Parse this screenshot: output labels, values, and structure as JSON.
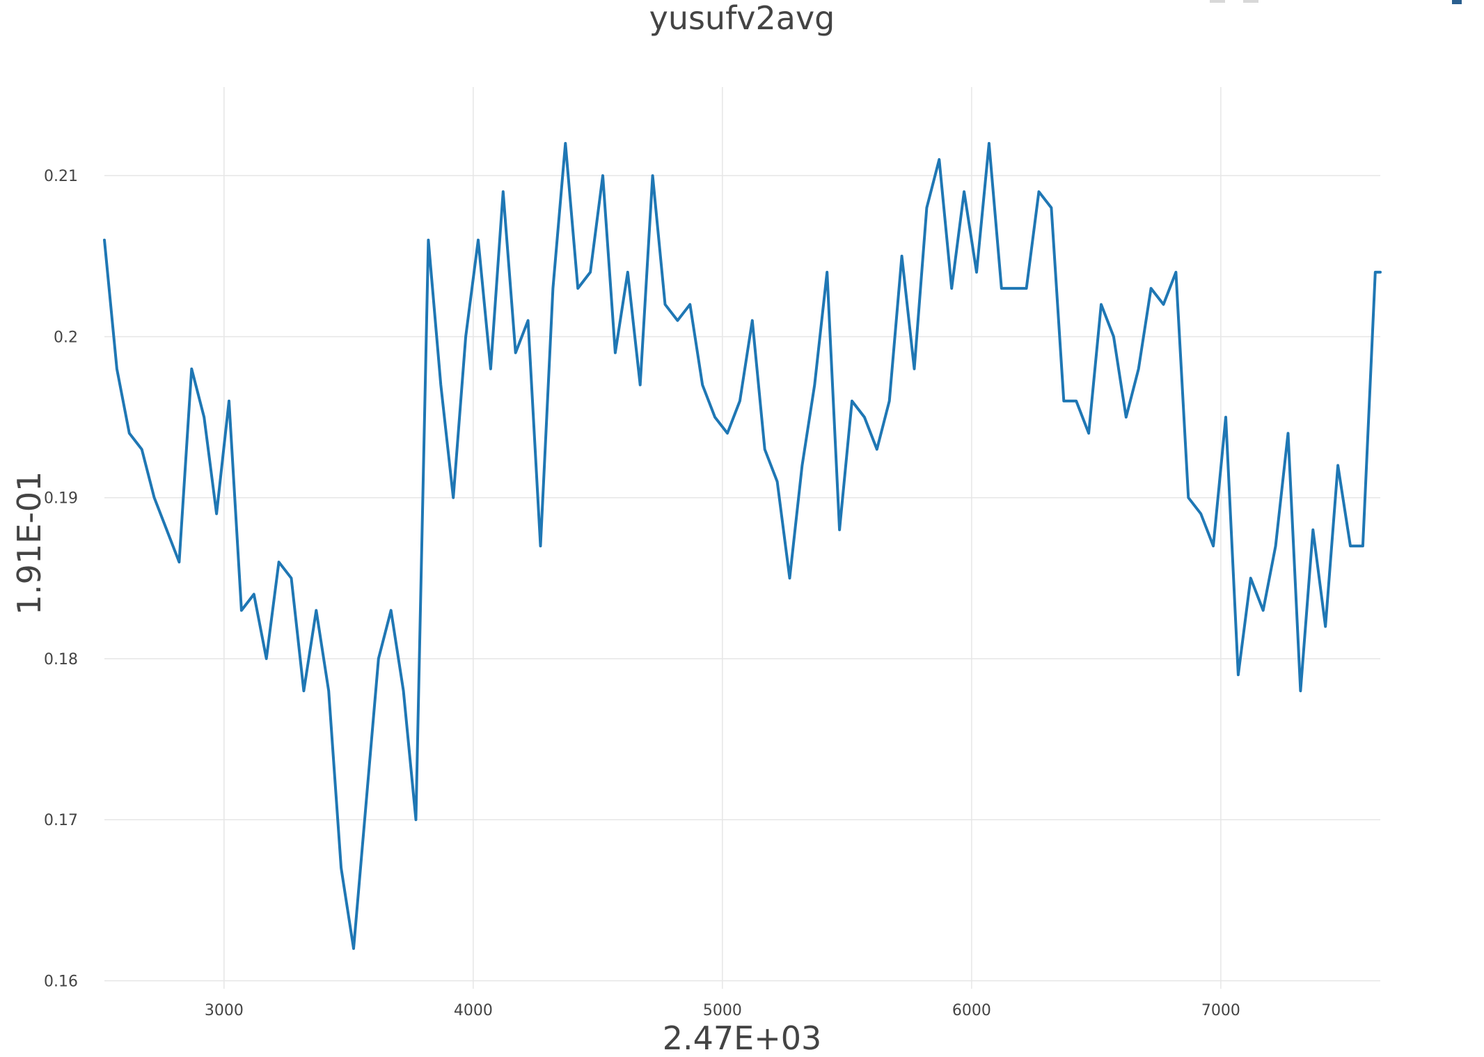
{
  "chart_data": {
    "type": "line",
    "title": "yusufv2avg",
    "xlabel": "2.47E+03",
    "ylabel": "1.91E-01",
    "xlim": [
      2520,
      7640
    ],
    "ylim": [
      0.1595,
      0.2155
    ],
    "x_ticks": [
      3000,
      4000,
      5000,
      6000,
      7000
    ],
    "x_tick_labels": [
      "3000",
      "4000",
      "5000",
      "6000",
      "7000"
    ],
    "y_ticks": [
      0.16,
      0.17,
      0.18,
      0.19,
      0.2,
      0.21
    ],
    "y_tick_labels": [
      "0.16",
      "0.17",
      "0.18",
      "0.19",
      "0.2",
      "0.21"
    ],
    "grid": true,
    "series": [
      {
        "color": "#1f77b4",
        "x": [
          2520,
          2570,
          2620,
          2670,
          2720,
          2770,
          2820,
          2870,
          2920,
          2970,
          3020,
          3070,
          3120,
          3170,
          3220,
          3270,
          3320,
          3370,
          3420,
          3470,
          3520,
          3570,
          3620,
          3670,
          3720,
          3770,
          3820,
          3870,
          3920,
          3970,
          4020,
          4070,
          4120,
          4170,
          4220,
          4270,
          4320,
          4370,
          4420,
          4470,
          4520,
          4570,
          4620,
          4670,
          4720,
          4770,
          4820,
          4870,
          4920,
          4970,
          5020,
          5070,
          5120,
          5170,
          5220,
          5270,
          5320,
          5370,
          5420,
          5470,
          5520,
          5570,
          5620,
          5670,
          5720,
          5770,
          5820,
          5870,
          5920,
          5970,
          6020,
          6070,
          6120,
          6170,
          6220,
          6270,
          6320,
          6370,
          6420,
          6470,
          6520,
          6570,
          6620,
          6670,
          6720,
          6770,
          6820,
          6870,
          6920,
          6970,
          7020,
          7070,
          7120,
          7170,
          7220,
          7270,
          7320,
          7370,
          7420,
          7470,
          7520,
          7570,
          7620,
          7640
        ],
        "y": [
          0.206,
          0.198,
          0.194,
          0.193,
          0.19,
          0.188,
          0.186,
          0.198,
          0.195,
          0.189,
          0.196,
          0.183,
          0.184,
          0.18,
          0.186,
          0.185,
          0.178,
          0.183,
          0.178,
          0.167,
          0.162,
          0.171,
          0.18,
          0.183,
          0.178,
          0.17,
          0.206,
          0.197,
          0.19,
          0.2,
          0.206,
          0.198,
          0.209,
          0.199,
          0.201,
          0.187,
          0.203,
          0.212,
          0.203,
          0.204,
          0.21,
          0.199,
          0.204,
          0.197,
          0.21,
          0.202,
          0.201,
          0.202,
          0.197,
          0.195,
          0.194,
          0.196,
          0.201,
          0.193,
          0.191,
          0.185,
          0.192,
          0.197,
          0.204,
          0.188,
          0.196,
          0.195,
          0.193,
          0.196,
          0.205,
          0.198,
          0.208,
          0.211,
          0.203,
          0.209,
          0.204,
          0.212,
          0.203,
          0.203,
          0.203,
          0.209,
          0.208,
          0.196,
          0.196,
          0.194,
          0.202,
          0.2,
          0.195,
          0.198,
          0.203,
          0.202,
          0.204,
          0.19,
          0.189,
          0.187,
          0.195,
          0.179,
          0.185,
          0.183,
          0.187,
          0.194,
          0.178,
          0.188,
          0.182,
          0.192,
          0.187,
          0.187,
          0.204,
          0.204
        ]
      }
    ]
  }
}
